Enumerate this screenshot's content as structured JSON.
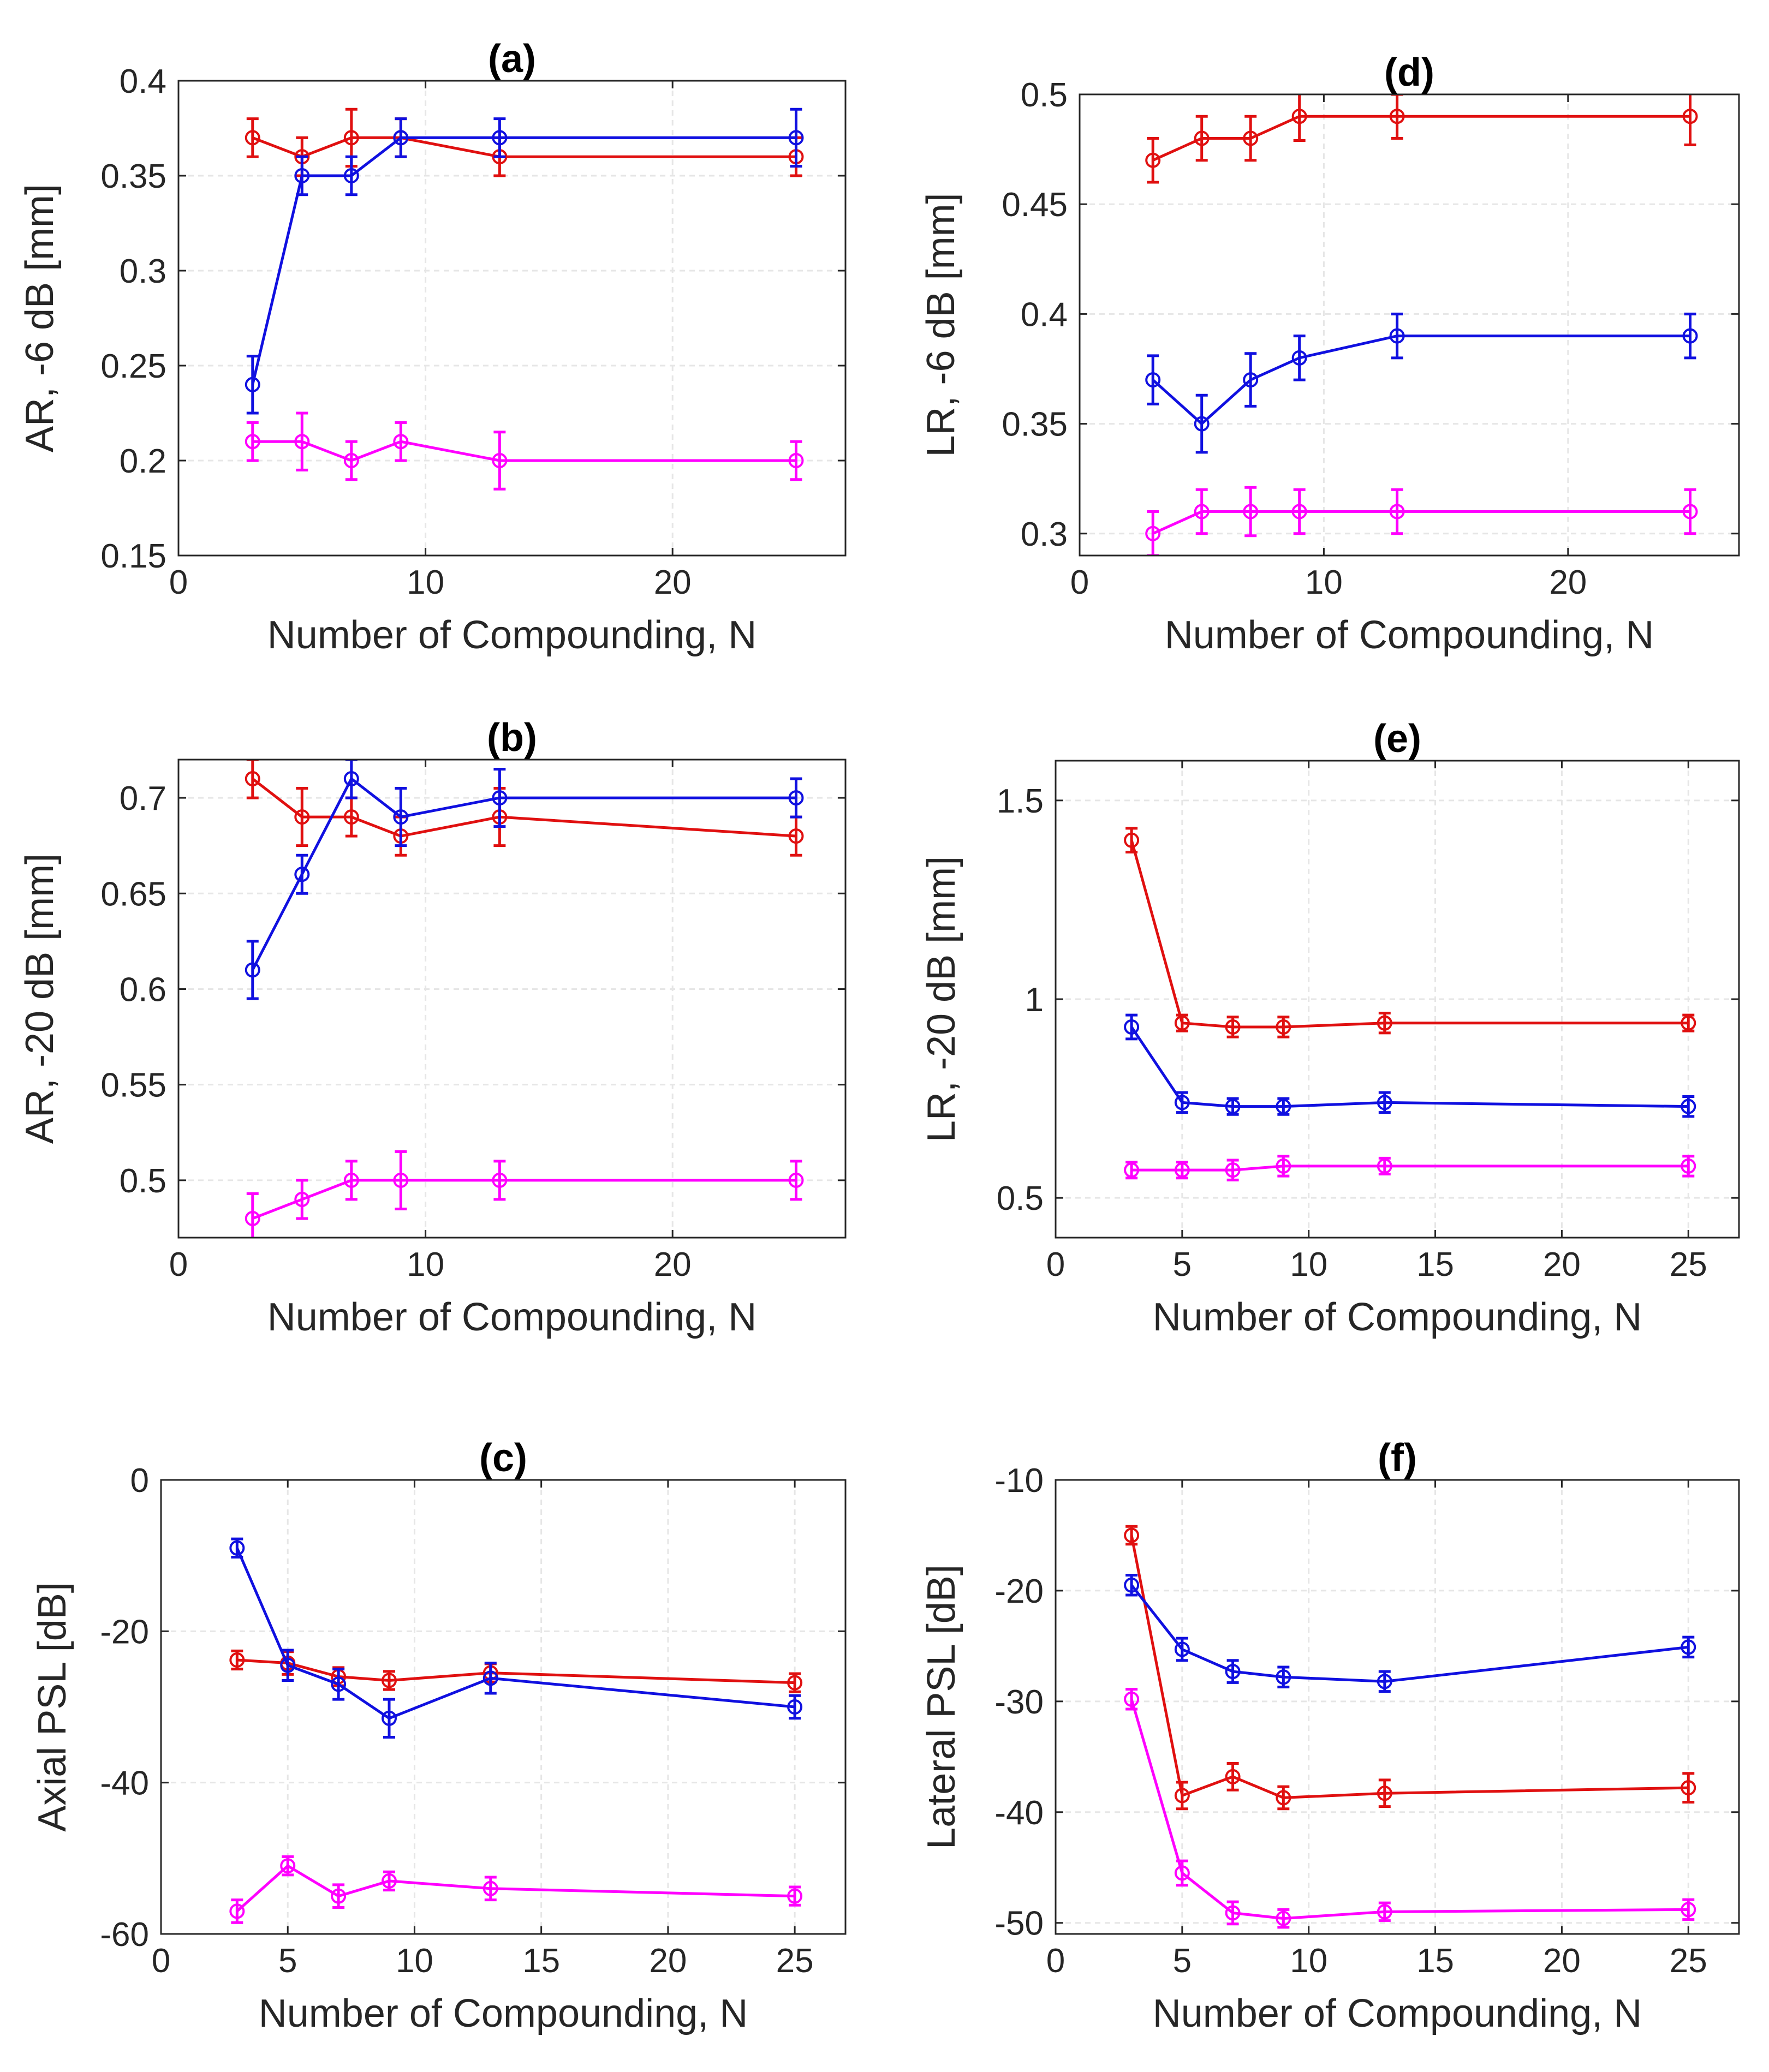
{
  "figure": {
    "series_colors": [
      "#e01010",
      "#1010e0",
      "#ff00ff"
    ],
    "grid_color": "#e6e6e6",
    "axis_color": "#262626"
  },
  "chart_data": [
    {
      "panel": "a",
      "type": "line",
      "title": "(a)",
      "xlabel": "Number of Compounding, N",
      "ylabel": "AR, -6 dB [mm]",
      "xlim": [
        0,
        27
      ],
      "ylim": [
        0.15,
        0.4
      ],
      "xticks": [
        0,
        10,
        20
      ],
      "xtick_labels": [
        "0",
        "10",
        "20"
      ],
      "yticks": [
        0.15,
        0.2,
        0.25,
        0.3,
        0.35,
        0.4
      ],
      "ytick_labels": [
        "0.15",
        "0.2",
        "0.25",
        "0.3",
        "0.35",
        "0.4"
      ],
      "grid": true,
      "x": [
        3,
        5,
        7,
        9,
        13,
        25
      ],
      "series": [
        {
          "color": "#e01010",
          "values": [
            0.37,
            0.36,
            0.37,
            0.37,
            0.36,
            0.36
          ],
          "errors": [
            0.01,
            0.01,
            0.015,
            0.01,
            0.01,
            0.01
          ]
        },
        {
          "color": "#1010e0",
          "values": [
            0.24,
            0.35,
            0.35,
            0.37,
            0.37,
            0.37
          ],
          "errors": [
            0.015,
            0.01,
            0.01,
            0.01,
            0.01,
            0.015
          ]
        },
        {
          "color": "#ff00ff",
          "values": [
            0.21,
            0.21,
            0.2,
            0.21,
            0.2,
            0.2
          ],
          "errors": [
            0.01,
            0.015,
            0.01,
            0.01,
            0.015,
            0.01
          ]
        }
      ]
    },
    {
      "panel": "b",
      "type": "line",
      "title": "(b)",
      "xlabel": "Number of Compounding, N",
      "ylabel": "AR, -20 dB [mm]",
      "xlim": [
        0,
        27
      ],
      "ylim": [
        0.47,
        0.72
      ],
      "xticks": [
        0,
        10,
        20
      ],
      "xtick_labels": [
        "0",
        "10",
        "20"
      ],
      "yticks": [
        0.5,
        0.55,
        0.6,
        0.65,
        0.7
      ],
      "ytick_labels": [
        "0.5",
        "0.55",
        "0.6",
        "0.65",
        "0.7"
      ],
      "grid": true,
      "x": [
        3,
        5,
        7,
        9,
        13,
        25
      ],
      "series": [
        {
          "color": "#e01010",
          "values": [
            0.71,
            0.69,
            0.69,
            0.68,
            0.69,
            0.68
          ],
          "errors": [
            0.01,
            0.015,
            0.01,
            0.01,
            0.015,
            0.01
          ]
        },
        {
          "color": "#1010e0",
          "values": [
            0.61,
            0.66,
            0.71,
            0.69,
            0.7,
            0.7
          ],
          "errors": [
            0.015,
            0.01,
            0.01,
            0.015,
            0.015,
            0.01
          ]
        },
        {
          "color": "#ff00ff",
          "values": [
            0.48,
            0.49,
            0.5,
            0.5,
            0.5,
            0.5
          ],
          "errors": [
            0.013,
            0.01,
            0.01,
            0.015,
            0.01,
            0.01
          ]
        }
      ]
    },
    {
      "panel": "c",
      "type": "line",
      "title": "(c)",
      "xlabel": "Number of Compounding, N",
      "ylabel": "Axial PSL [dB]",
      "xlim": [
        0,
        27
      ],
      "ylim": [
        -60,
        0
      ],
      "xticks": [
        0,
        5,
        10,
        15,
        20,
        25
      ],
      "xtick_labels": [
        "0",
        "5",
        "10",
        "15",
        "20",
        "25"
      ],
      "yticks": [
        -60,
        -40,
        -20,
        0
      ],
      "ytick_labels": [
        "-60",
        "-40",
        "-20",
        "0"
      ],
      "grid": true,
      "x": [
        3,
        5,
        7,
        9,
        13,
        25
      ],
      "series": [
        {
          "color": "#e01010",
          "values": [
            -23.8,
            -24.2,
            -26,
            -26.5,
            -25.5,
            -26.8
          ],
          "errors": [
            1.2,
            1.5,
            1.2,
            1.2,
            1.2,
            1.2
          ]
        },
        {
          "color": "#1010e0",
          "values": [
            -9,
            -24.5,
            -27,
            -31.5,
            -26.2,
            -30
          ],
          "errors": [
            1.2,
            2,
            2,
            2.5,
            2,
            1.5
          ]
        },
        {
          "color": "#ff00ff",
          "values": [
            -57,
            -51,
            -55,
            -53,
            -54,
            -55
          ],
          "errors": [
            1.5,
            1.2,
            1.5,
            1.2,
            1.5,
            1.2
          ]
        }
      ]
    },
    {
      "panel": "d",
      "type": "line",
      "title": "(d)",
      "xlabel": "Number of Compounding, N",
      "ylabel": "LR, -6 dB [mm]",
      "xlim": [
        0,
        27
      ],
      "ylim": [
        0.29,
        0.5
      ],
      "xticks": [
        0,
        10,
        20
      ],
      "xtick_labels": [
        "0",
        "10",
        "20"
      ],
      "yticks": [
        0.3,
        0.35,
        0.4,
        0.45,
        0.5
      ],
      "ytick_labels": [
        "0.3",
        "0.35",
        "0.4",
        "0.45",
        "0.5"
      ],
      "grid": true,
      "x": [
        3,
        5,
        7,
        9,
        13,
        25
      ],
      "series": [
        {
          "color": "#e01010",
          "values": [
            0.47,
            0.48,
            0.48,
            0.49,
            0.49,
            0.49
          ],
          "errors": [
            0.01,
            0.01,
            0.01,
            0.011,
            0.01,
            0.013
          ]
        },
        {
          "color": "#1010e0",
          "values": [
            0.37,
            0.35,
            0.37,
            0.38,
            0.39,
            0.39
          ],
          "errors": [
            0.011,
            0.013,
            0.012,
            0.01,
            0.01,
            0.01
          ]
        },
        {
          "color": "#ff00ff",
          "values": [
            0.3,
            0.31,
            0.31,
            0.31,
            0.31,
            0.31
          ],
          "errors": [
            0.01,
            0.01,
            0.011,
            0.01,
            0.01,
            0.01
          ]
        }
      ]
    },
    {
      "panel": "e",
      "type": "line",
      "title": "(e)",
      "xlabel": "Number of Compounding, N",
      "ylabel": "LR, -20 dB [mm]",
      "xlim": [
        0,
        27
      ],
      "ylim": [
        0.4,
        1.6
      ],
      "xticks": [
        0,
        5,
        10,
        15,
        20,
        25
      ],
      "xtick_labels": [
        "0",
        "5",
        "10",
        "15",
        "20",
        "25"
      ],
      "yticks": [
        0.5,
        1,
        1.5
      ],
      "ytick_labels": [
        "0.5",
        "1",
        "1.5"
      ],
      "grid": true,
      "x": [
        3,
        5,
        7,
        9,
        13,
        25
      ],
      "series": [
        {
          "color": "#e01010",
          "values": [
            1.4,
            0.94,
            0.93,
            0.93,
            0.94,
            0.94
          ],
          "errors": [
            0.03,
            0.02,
            0.025,
            0.025,
            0.025,
            0.02
          ]
        },
        {
          "color": "#1010e0",
          "values": [
            0.93,
            0.74,
            0.73,
            0.73,
            0.74,
            0.73
          ],
          "errors": [
            0.03,
            0.025,
            0.02,
            0.02,
            0.025,
            0.025
          ]
        },
        {
          "color": "#ff00ff",
          "values": [
            0.57,
            0.57,
            0.57,
            0.58,
            0.58,
            0.58
          ],
          "errors": [
            0.02,
            0.02,
            0.025,
            0.025,
            0.02,
            0.025
          ]
        }
      ]
    },
    {
      "panel": "f",
      "type": "line",
      "title": "(f)",
      "xlabel": "Number of Compounding, N",
      "ylabel": "Lateral PSL [dB]",
      "xlim": [
        0,
        27
      ],
      "ylim": [
        -51,
        -10
      ],
      "xticks": [
        0,
        5,
        10,
        15,
        20,
        25
      ],
      "xtick_labels": [
        "0",
        "5",
        "10",
        "15",
        "20",
        "25"
      ],
      "yticks": [
        -50,
        -40,
        -30,
        -20,
        -10
      ],
      "ytick_labels": [
        "-50",
        "-40",
        "-30",
        "-20",
        "-10"
      ],
      "grid": true,
      "x": [
        3,
        5,
        7,
        9,
        13,
        25
      ],
      "series": [
        {
          "color": "#e01010",
          "values": [
            -15,
            -38.5,
            -36.8,
            -38.7,
            -38.3,
            -37.8
          ],
          "errors": [
            0.8,
            1.2,
            1.2,
            1.0,
            1.2,
            1.3
          ]
        },
        {
          "color": "#1010e0",
          "values": [
            -19.5,
            -25.3,
            -27.3,
            -27.8,
            -28.2,
            -25.1
          ],
          "errors": [
            0.9,
            1.0,
            1.0,
            0.9,
            0.9,
            0.9
          ]
        },
        {
          "color": "#ff00ff",
          "values": [
            -29.8,
            -45.5,
            -49.1,
            -49.6,
            -49,
            -48.8
          ],
          "errors": [
            0.9,
            1.1,
            1.0,
            0.8,
            0.8,
            0.9
          ]
        }
      ]
    }
  ]
}
